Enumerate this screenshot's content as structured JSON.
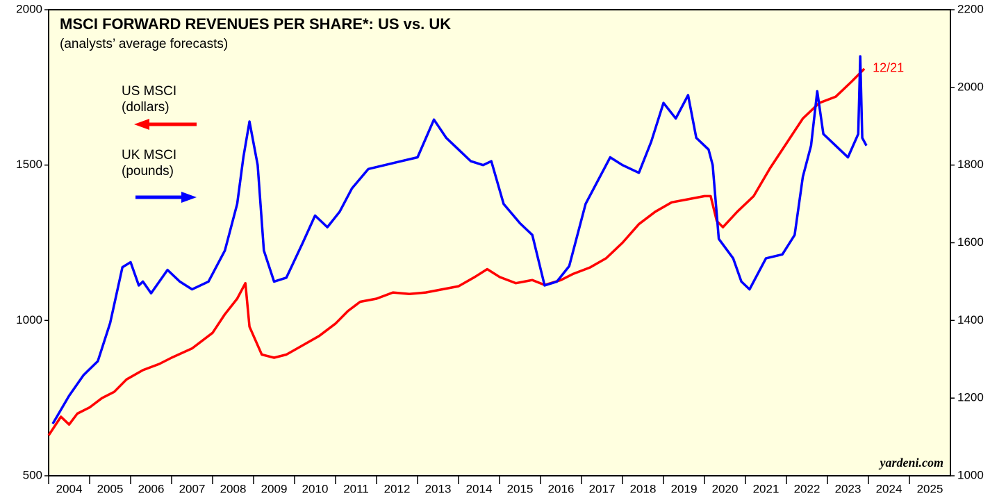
{
  "chart_data": {
    "type": "line",
    "title": "MSCI FORWARD REVENUES PER SHARE*: US vs. UK",
    "subtitle": "(analysts’ average forecasts)",
    "annotation": "12/21",
    "source": "yardeni.com",
    "xlim": [
      2004,
      2026
    ],
    "xticks": [
      {
        "value": 2004,
        "label": "2004"
      },
      {
        "value": 2005,
        "label": "2005"
      },
      {
        "value": 2006,
        "label": "2006"
      },
      {
        "value": 2007,
        "label": "2007"
      },
      {
        "value": 2008,
        "label": "2008"
      },
      {
        "value": 2009,
        "label": "2009"
      },
      {
        "value": 2010,
        "label": "2010"
      },
      {
        "value": 2011,
        "label": "2011"
      },
      {
        "value": 2012,
        "label": "2012"
      },
      {
        "value": 2013,
        "label": "2013"
      },
      {
        "value": 2014,
        "label": "2014"
      },
      {
        "value": 2015,
        "label": "2015"
      },
      {
        "value": 2016,
        "label": "2016"
      },
      {
        "value": 2017,
        "label": "2017"
      },
      {
        "value": 2018,
        "label": "2018"
      },
      {
        "value": 2019,
        "label": "2019"
      },
      {
        "value": 2020,
        "label": "2020"
      },
      {
        "value": 2021,
        "label": "2021"
      },
      {
        "value": 2022,
        "label": "2022"
      },
      {
        "value": 2023,
        "label": "2023"
      },
      {
        "value": 2024,
        "label": "2024"
      },
      {
        "value": 2025,
        "label": "2025"
      }
    ],
    "ylim": [
      500,
      2000
    ],
    "yticks": [
      500,
      1000,
      1500,
      2000
    ],
    "y2lim": [
      1000,
      2200
    ],
    "y2ticks": [
      1000,
      1200,
      1400,
      1600,
      1800,
      2000,
      2200
    ],
    "series": [
      {
        "name": "US MSCI",
        "legend_note": "(dollars)",
        "color": "#ff0000",
        "axis": "y",
        "x": [
          2004.0,
          2004.3,
          2004.5,
          2004.7,
          2005.0,
          2005.3,
          2005.6,
          2005.9,
          2006.3,
          2006.7,
          2007.0,
          2007.5,
          2008.0,
          2008.3,
          2008.6,
          2008.8,
          2008.9,
          2009.2,
          2009.5,
          2009.8,
          2010.2,
          2010.6,
          2011.0,
          2011.3,
          2011.6,
          2012.0,
          2012.4,
          2012.8,
          2013.2,
          2013.6,
          2014.0,
          2014.4,
          2014.7,
          2015.0,
          2015.4,
          2015.8,
          2016.1,
          2016.5,
          2016.8,
          2017.2,
          2017.6,
          2018.0,
          2018.4,
          2018.8,
          2019.2,
          2019.6,
          2020.0,
          2020.15,
          2020.3,
          2020.45,
          2020.8,
          2021.2,
          2021.6,
          2022.0,
          2022.4,
          2022.8,
          2023.2,
          2023.6,
          2023.9
        ],
        "values": [
          630,
          690,
          665,
          700,
          720,
          750,
          770,
          810,
          840,
          860,
          880,
          910,
          960,
          1020,
          1070,
          1120,
          980,
          890,
          880,
          890,
          920,
          950,
          990,
          1030,
          1060,
          1070,
          1090,
          1085,
          1090,
          1100,
          1110,
          1140,
          1165,
          1140,
          1120,
          1130,
          1114,
          1130,
          1150,
          1170,
          1200,
          1250,
          1310,
          1350,
          1380,
          1390,
          1400,
          1400,
          1320,
          1300,
          1350,
          1400,
          1490,
          1570,
          1650,
          1700,
          1720,
          1770,
          1810
        ]
      },
      {
        "name": "UK MSCI",
        "legend_note": "(pounds)",
        "color": "#0000ff",
        "axis": "y2",
        "x": [
          2004.1,
          2004.5,
          2004.85,
          2005.2,
          2005.5,
          2005.8,
          2006.0,
          2006.2,
          2006.3,
          2006.5,
          2006.9,
          2007.2,
          2007.5,
          2007.9,
          2008.3,
          2008.6,
          2008.75,
          2008.9,
          2009.1,
          2009.25,
          2009.5,
          2009.8,
          2010.2,
          2010.5,
          2010.8,
          2011.1,
          2011.4,
          2011.8,
          2012.2,
          2012.6,
          2013.0,
          2013.4,
          2013.7,
          2014.0,
          2014.3,
          2014.6,
          2014.8,
          2015.1,
          2015.5,
          2015.8,
          2016.1,
          2016.4,
          2016.7,
          2017.1,
          2017.4,
          2017.7,
          2018.0,
          2018.4,
          2018.7,
          2019.0,
          2019.3,
          2019.6,
          2019.8,
          2020.1,
          2020.2,
          2020.35,
          2020.7,
          2020.9,
          2021.1,
          2021.5,
          2021.9,
          2022.2,
          2022.4,
          2022.6,
          2022.75,
          2022.9,
          2023.2,
          2023.5,
          2023.75,
          2023.8,
          2023.85,
          2023.95
        ],
        "values": [
          1134,
          1206,
          1259,
          1295,
          1393,
          1537,
          1550,
          1490,
          1500,
          1470,
          1530,
          1500,
          1480,
          1500,
          1580,
          1700,
          1820,
          1912,
          1800,
          1580,
          1500,
          1510,
          1600,
          1670,
          1640,
          1680,
          1740,
          1790,
          1800,
          1810,
          1820,
          1917,
          1870,
          1840,
          1810,
          1800,
          1810,
          1700,
          1650,
          1620,
          1490,
          1500,
          1540,
          1700,
          1760,
          1820,
          1800,
          1780,
          1860,
          1960,
          1920,
          1980,
          1870,
          1840,
          1800,
          1610,
          1560,
          1500,
          1480,
          1560,
          1570,
          1620,
          1770,
          1850,
          1990,
          1880,
          1850,
          1820,
          1880,
          2080,
          1870,
          1850
        ]
      }
    ]
  }
}
